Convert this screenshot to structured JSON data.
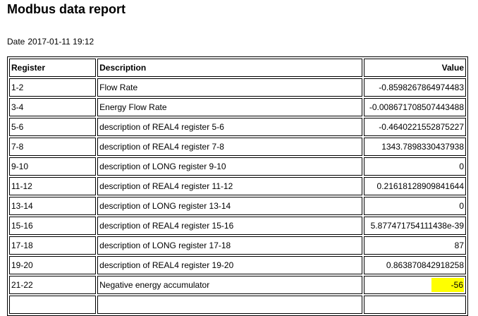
{
  "page": {
    "title": "Modbus data report",
    "date_label": "Date",
    "date_value": "2017-01-11 19:12"
  },
  "table": {
    "headers": {
      "register": "Register",
      "description": "Description",
      "value": "Value"
    },
    "rows": [
      {
        "register": "1-2",
        "description": "Flow Rate",
        "value": "-0.8598267864974483"
      },
      {
        "register": "3-4",
        "description": "Energy Flow Rate",
        "value": "-0.008671708507443488"
      },
      {
        "register": "5-6",
        "description": "description of REAL4 register 5-6",
        "value": "-0.4640221552875227"
      },
      {
        "register": "7-8",
        "description": "description of REAL4 register 7-8",
        "value": "1343.7898330437938"
      },
      {
        "register": "9-10",
        "description": "description of LONG register 9-10",
        "value": "0"
      },
      {
        "register": "11-12",
        "description": "description of REAL4 register 11-12",
        "value": "0.21618128909841644"
      },
      {
        "register": "13-14",
        "description": "description of LONG register 13-14",
        "value": "0"
      },
      {
        "register": "15-16",
        "description": "description of REAL4 register 15-16",
        "value": "5.877471754111438e-39"
      },
      {
        "register": "17-18",
        "description": "description of LONG register 17-18",
        "value": "87"
      },
      {
        "register": "19-20",
        "description": "description of REAL4 register 19-20",
        "value": "0.863870842918258"
      },
      {
        "register": "21-22",
        "description": "Negative energy accumulator",
        "value": "-56",
        "highlight": true
      },
      {
        "register": "",
        "description": "",
        "value": ""
      }
    ]
  },
  "colors": {
    "highlight": "#ffff00",
    "border": "#000000"
  }
}
